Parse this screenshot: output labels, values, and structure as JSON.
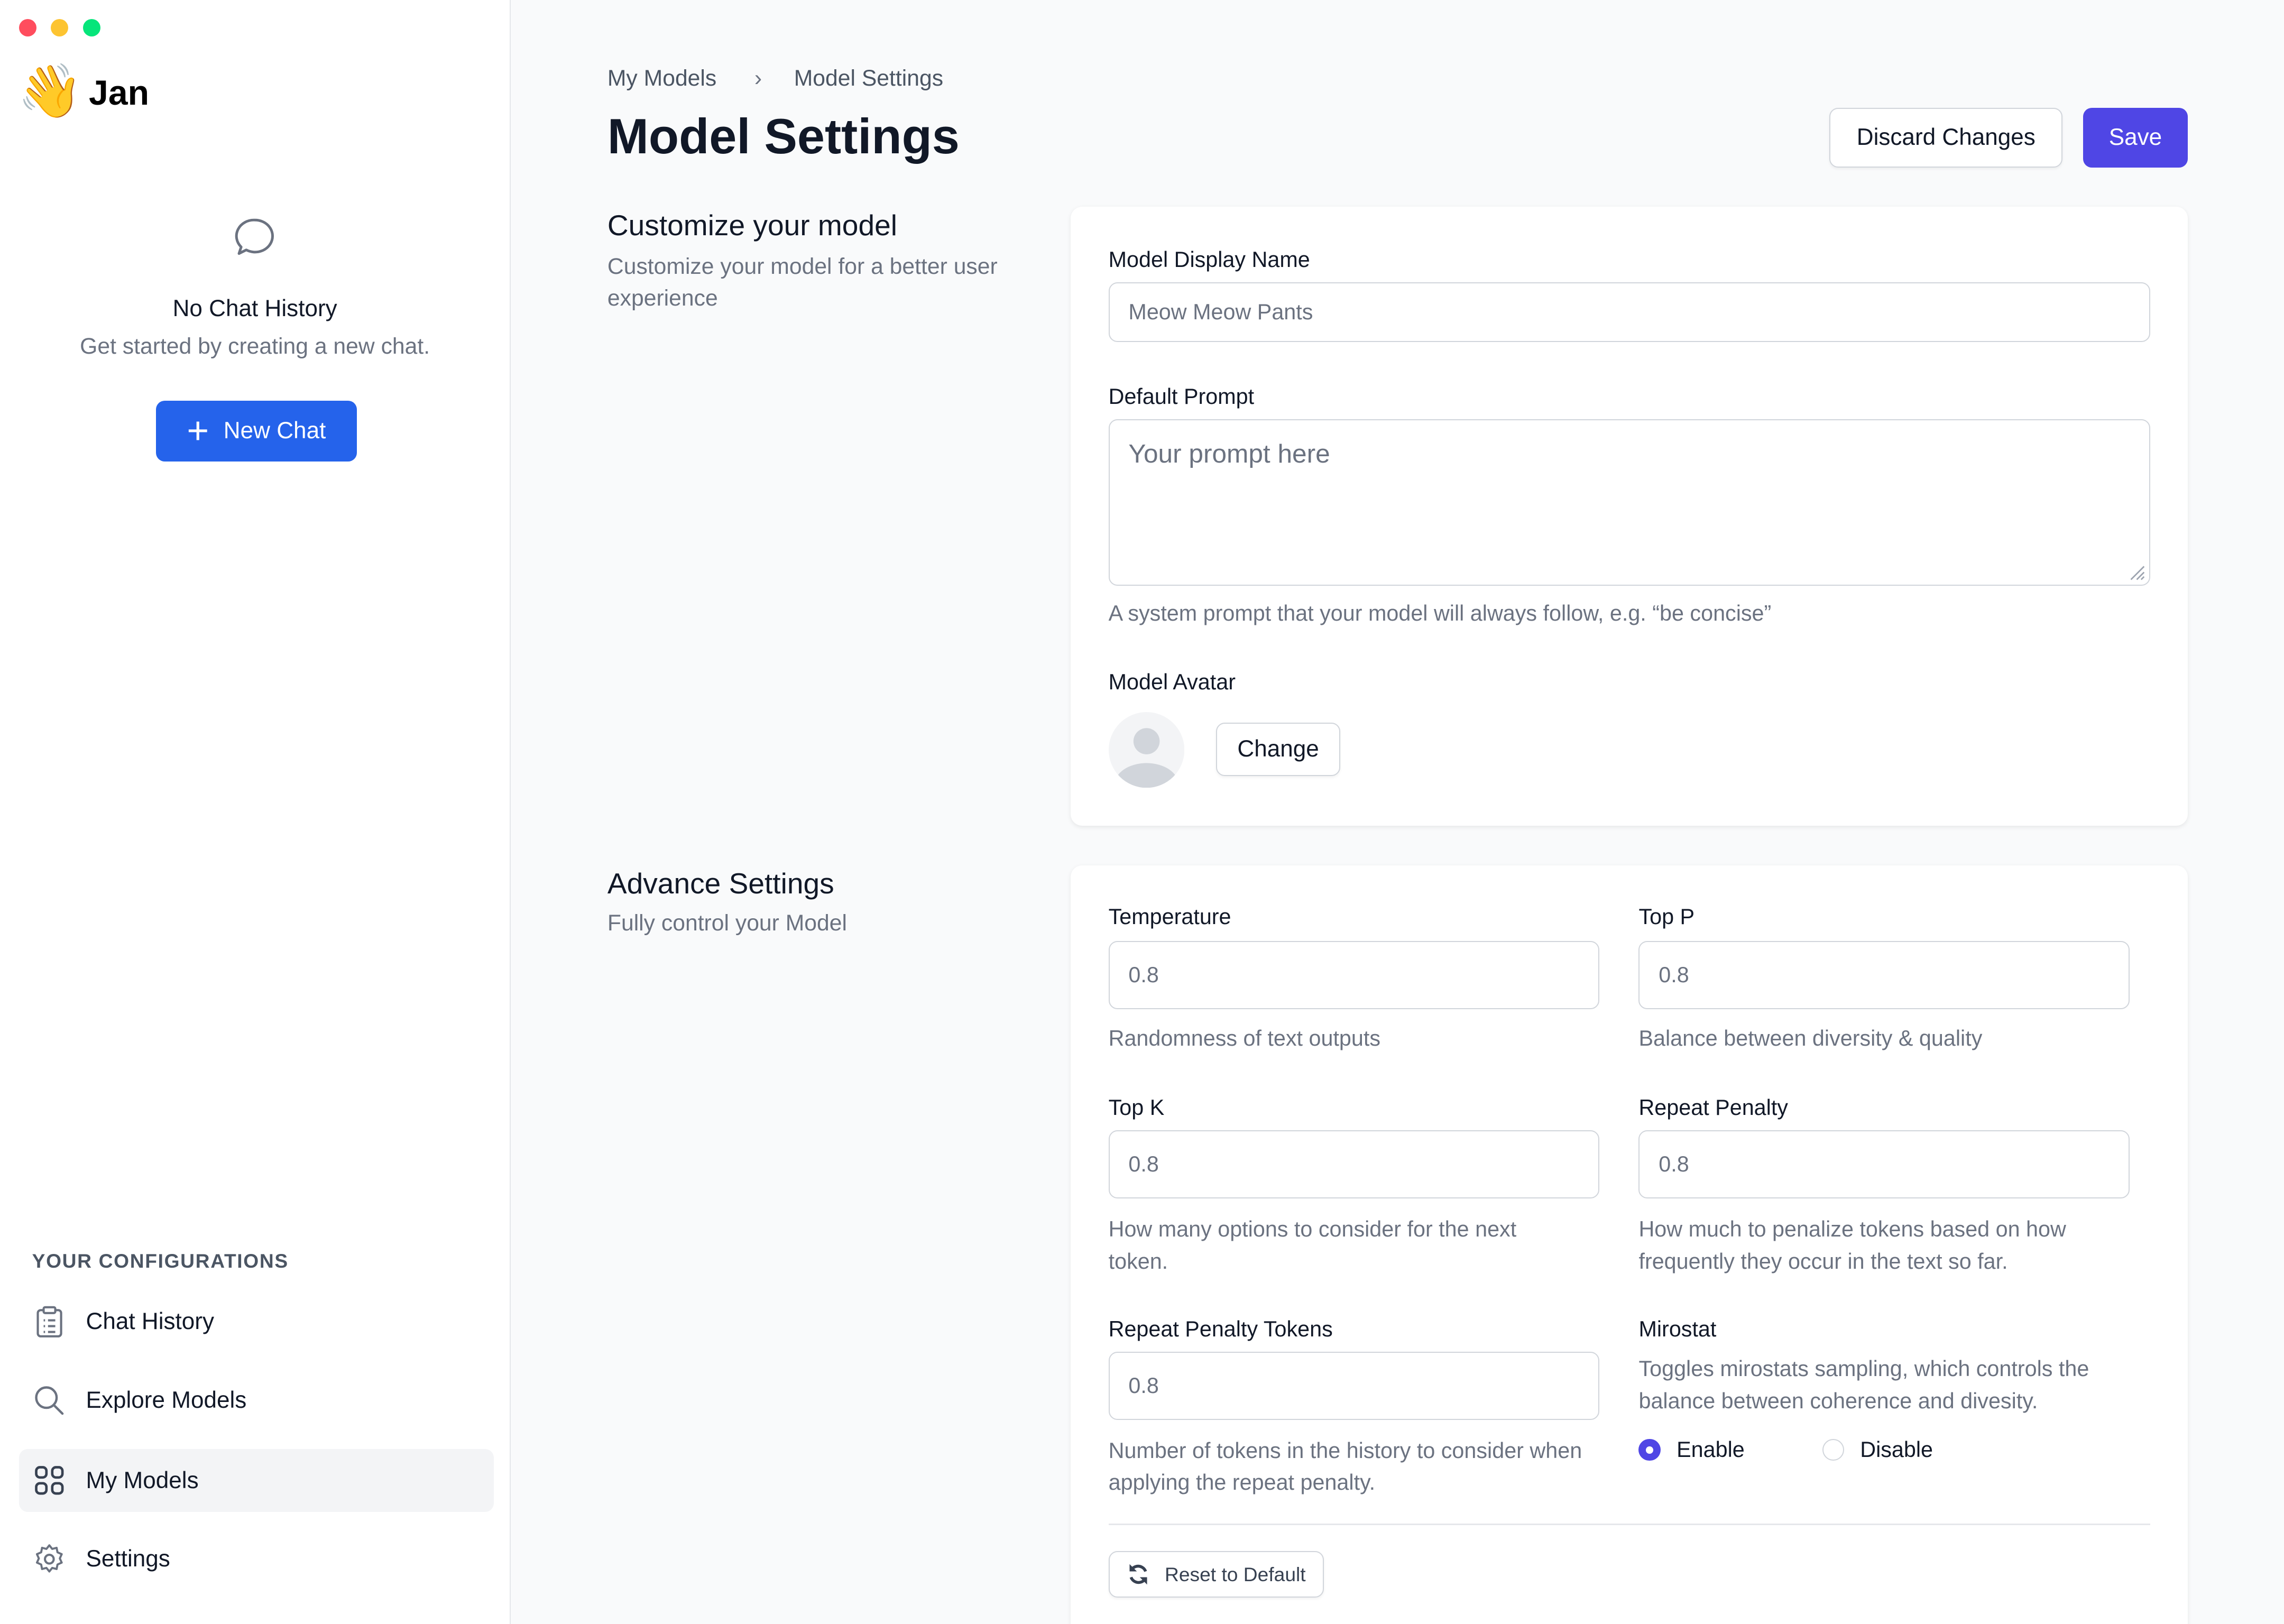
{
  "window": {
    "controls": {
      "close_color": "#ff4d5e",
      "minimize_color": "#fdc431",
      "maximize_color": "#06e57a"
    }
  },
  "sidebar": {
    "app_name": "Jan",
    "logo_icon": "waving-hand-emoji",
    "empty_state": {
      "title": "No Chat History",
      "subtitle": "Get started by creating a new chat."
    },
    "new_chat_label": "New Chat",
    "section_title": "YOUR CONFIGURATIONS",
    "items": [
      {
        "label": "Chat History",
        "icon": "clipboard-icon"
      },
      {
        "label": "Explore Models",
        "icon": "search-icon"
      },
      {
        "label": "My Models",
        "icon": "grid-icon",
        "active": true
      },
      {
        "label": "Settings",
        "icon": "gear-icon"
      }
    ]
  },
  "header": {
    "breadcrumb": [
      "My Models",
      "Model Settings"
    ],
    "title": "Model Settings",
    "discard_label": "Discard Changes",
    "save_label": "Save"
  },
  "customize": {
    "title": "Customize your model",
    "subtitle": "Customize your model for a better user experience",
    "display_name_label": "Model Display Name",
    "display_name_value": "Meow Meow Pants",
    "prompt_label": "Default Prompt",
    "prompt_placeholder": "Your prompt here",
    "prompt_help": "A system prompt that your model will always follow, e.g. “be concise”",
    "avatar_label": "Model Avatar",
    "change_label": "Change"
  },
  "advanced": {
    "title": "Advance Settings",
    "subtitle": "Fully control your Model",
    "temperature": {
      "label": "Temperature",
      "value": "0.8",
      "help": "Randomness of text outputs"
    },
    "top_p": {
      "label": "Top P",
      "value": "0.8",
      "help": "Balance between diversity & quality"
    },
    "top_k": {
      "label": "Top K",
      "value": "0.8",
      "help": "How many options to consider for the next token."
    },
    "repeat_penalty": {
      "label": "Repeat Penalty",
      "value": "0.8",
      "help": "How much to penalize tokens based on how frequently they occur in the text so far."
    },
    "repeat_penalty_tokens": {
      "label": "Repeat Penalty Tokens",
      "value": "0.8",
      "help": "Number of tokens in the history to consider when applying the repeat penalty."
    },
    "mirostat": {
      "label": "Mirostat",
      "help": "Toggles mirostats sampling, which controls the balance between coherence and divesity.",
      "enable_label": "Enable",
      "disable_label": "Disable",
      "selected": "Enable"
    },
    "reset_label": "Reset to Default"
  },
  "colors": {
    "primary_blue": "#2563eb",
    "save_indigo": "#4f46e5"
  }
}
